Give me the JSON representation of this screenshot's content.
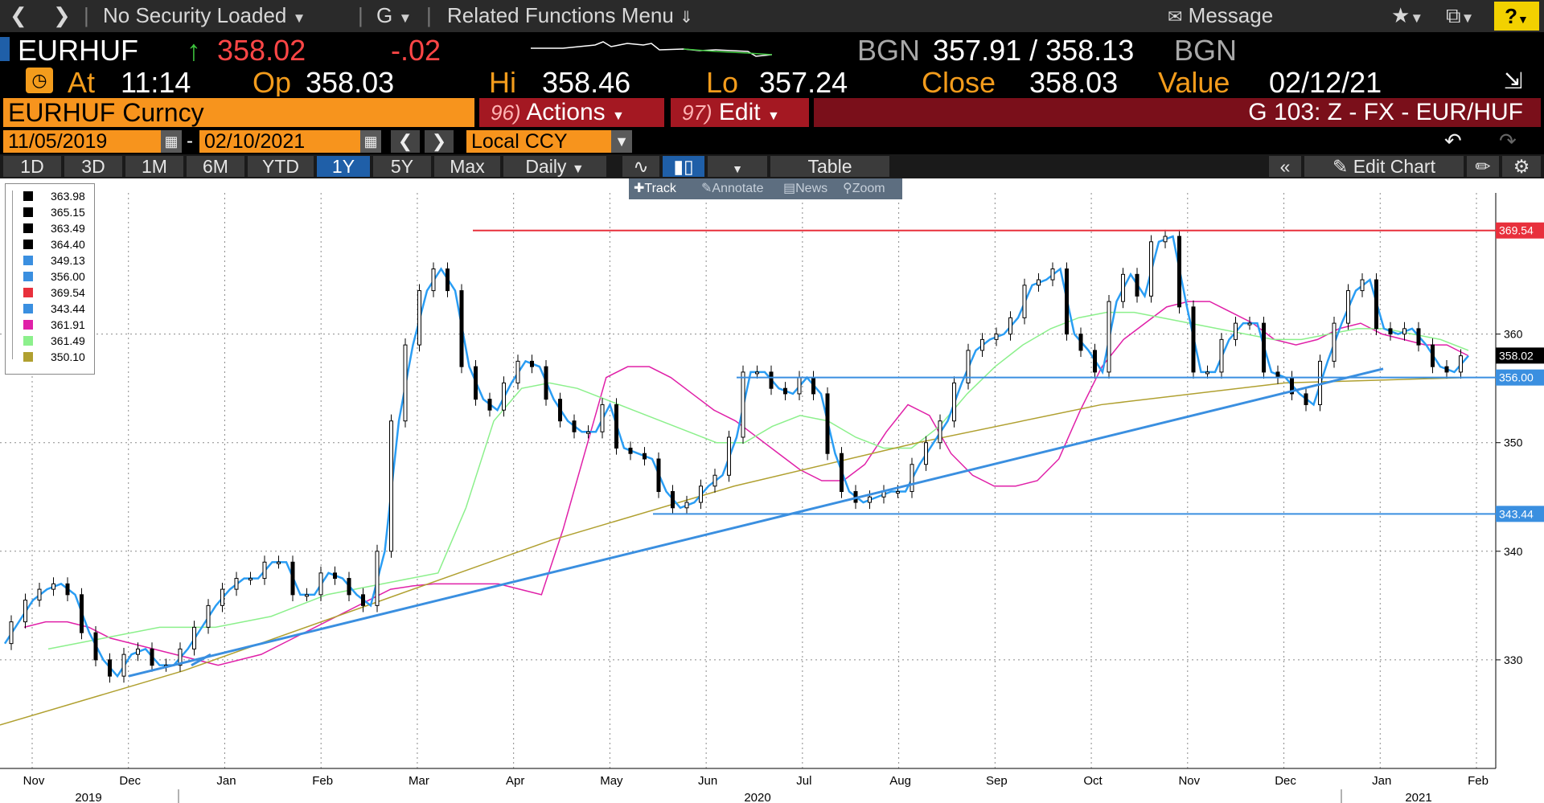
{
  "top": {
    "security": "No Security Loaded",
    "g_menu": "G",
    "related": "Related Functions Menu",
    "message": "Message",
    "help": "?"
  },
  "quote": {
    "ticker": "EURHUF",
    "last": "358.02",
    "change": "-.02",
    "bid_source": "BGN",
    "bid_ask": "357.91 / 358.13",
    "ask_source": "BGN",
    "at_label": "At",
    "at_time": "11:14",
    "open_label": "Op",
    "open": "358.03",
    "hi_label": "Hi",
    "hi": "358.46",
    "lo_label": "Lo",
    "lo": "357.24",
    "close_label": "Close",
    "close": "358.03",
    "value_label": "Value",
    "value_date": "02/12/21"
  },
  "security_bar": {
    "security": "EURHUF Curncy",
    "actions_num": "96)",
    "actions": "Actions",
    "edit_num": "97)",
    "edit": "Edit",
    "title": "G 103: Z - FX - EUR/HUF"
  },
  "date_range": {
    "start": "11/05/2019",
    "dash": "-",
    "end": "02/10/2021",
    "currency": "Local CCY"
  },
  "periods": [
    "1D",
    "3D",
    "1M",
    "6M",
    "YTD",
    "1Y",
    "5Y",
    "Max"
  ],
  "active_period": "1Y",
  "frequency": "Daily",
  "table_label": "Table",
  "edit_chart": "Edit Chart",
  "tools": [
    "Track",
    "Annotate",
    "News",
    "Zoom"
  ],
  "legend": [
    {
      "value": "363.98",
      "color": "#000000"
    },
    {
      "value": "365.15",
      "color": "#000000"
    },
    {
      "value": "363.49",
      "color": "#000000"
    },
    {
      "value": "364.40",
      "color": "#000000"
    },
    {
      "value": "349.13",
      "color": "#3a8fe0"
    },
    {
      "value": "356.00",
      "color": "#3a8fe0"
    },
    {
      "value": "369.54",
      "color": "#e8303c"
    },
    {
      "value": "343.44",
      "color": "#3a8fe0"
    },
    {
      "value": "361.91",
      "color": "#e020a8"
    },
    {
      "value": "361.49",
      "color": "#8cf08c"
    },
    {
      "value": "350.10",
      "color": "#b0a030"
    }
  ],
  "chart_data": {
    "type": "line",
    "title": "",
    "xlabel": "",
    "ylabel": "",
    "x_tick_labels": [
      "Nov",
      "Dec",
      "Jan",
      "Feb",
      "Mar",
      "Apr",
      "May",
      "Jun",
      "Jul",
      "Aug",
      "Sep",
      "Oct",
      "Nov",
      "Dec",
      "Jan",
      "Feb"
    ],
    "year_labels": [
      "2019",
      "2020",
      "2021"
    ],
    "y_ticks": [
      330,
      340,
      350,
      360
    ],
    "ylim": [
      320,
      373
    ],
    "price_labels": [
      {
        "value": "369.54",
        "color": "#e8303c"
      },
      {
        "value": "358.02",
        "color": "#000000"
      },
      {
        "value": "356.00",
        "color": "#3a8fe0"
      },
      {
        "value": "343.44",
        "color": "#3a8fe0"
      }
    ],
    "horizontal_lines": [
      {
        "value": 369.54,
        "color": "#e8303c"
      },
      {
        "value": 356.0,
        "color": "#3a8fe0"
      },
      {
        "value": 343.44,
        "color": "#3a8fe0"
      }
    ],
    "series": [
      {
        "name": "price",
        "color": "#2a9df4",
        "values": [
          331.5,
          333.5,
          335.5,
          336.5,
          337.0,
          336.0,
          332.5,
          330.0,
          328.5,
          330.5,
          331.0,
          329.5,
          329.5,
          331.0,
          333.0,
          335.0,
          336.5,
          337.5,
          337.5,
          339.0,
          339.0,
          336.0,
          336.0,
          338.0,
          337.5,
          336.0,
          335.0,
          340.0,
          352.0,
          359.0,
          364.0,
          366.0,
          364.0,
          357.0,
          354.0,
          353.0,
          355.5,
          357.5,
          357.0,
          354.0,
          352.0,
          351.0,
          351.0,
          353.5,
          349.5,
          349.0,
          348.5,
          345.5,
          344.0,
          344.5,
          346.0,
          347.0,
          350.5,
          356.5,
          356.5,
          355.0,
          354.5,
          356.0,
          354.5,
          349.0,
          345.5,
          344.5,
          345.0,
          345.5,
          345.5,
          348.0,
          350.0,
          352.0,
          355.5,
          358.5,
          359.5,
          360.0,
          361.5,
          364.5,
          365.0,
          366.0,
          360.0,
          358.5,
          356.5,
          363.0,
          365.5,
          363.5,
          368.5,
          369.0,
          362.5,
          356.5,
          356.5,
          359.5,
          361.0,
          361.0,
          356.5,
          356.0,
          354.5,
          353.5,
          357.5,
          361.0,
          364.0,
          365.0,
          360.5,
          360.0,
          360.5,
          359.0,
          357.0,
          356.5,
          358.0
        ]
      },
      {
        "name": "ma_short",
        "color": "#e020a8",
        "values": [
          333.0,
          333.5,
          333.5,
          333.0,
          332.0,
          331.5,
          331.0,
          330.5,
          330.0,
          329.5,
          330.0,
          330.5,
          331.5,
          332.5,
          333.5,
          334.5,
          335.5,
          336.5,
          336.8,
          337.0,
          337.0,
          337.0,
          337.0,
          336.5,
          336.0,
          342.0,
          349.0,
          356.0,
          357.0,
          357.0,
          356.0,
          354.5,
          353.0,
          352.0,
          350.5,
          349.0,
          347.5,
          346.5,
          346.5,
          348.0,
          351.0,
          353.5,
          352.5,
          349.0,
          347.0,
          346.0,
          346.0,
          346.5,
          348.5,
          353.0,
          357.0,
          359.5,
          361.0,
          362.5,
          363.0,
          363.0,
          362.0,
          361.0,
          359.5,
          359.0,
          359.5,
          360.5,
          361.0,
          360.0,
          359.5,
          359.0,
          359.0,
          358.0
        ]
      },
      {
        "name": "ma_mid",
        "color": "#8cf08c",
        "values": [
          331.0,
          331.5,
          332.0,
          332.5,
          333.0,
          333.0,
          333.0,
          333.5,
          334.0,
          335.0,
          336.0,
          336.5,
          337.0,
          337.5,
          338.0,
          344.0,
          352.0,
          355.0,
          355.5,
          355.0,
          354.0,
          353.0,
          352.0,
          351.0,
          350.0,
          350.0,
          351.5,
          352.5,
          352.0,
          350.5,
          349.5,
          349.5,
          351.5,
          354.5,
          357.0,
          359.0,
          360.5,
          361.5,
          362.0,
          362.0,
          361.5,
          361.0,
          360.5,
          360.0,
          359.5,
          359.5,
          360.0,
          360.5,
          360.5,
          360.0,
          359.5,
          358.5
        ]
      },
      {
        "name": "ma_long",
        "color": "#b0a030",
        "values": [
          324.0,
          329.0,
          335.0,
          341.0,
          346.0,
          350.0,
          353.5,
          355.5,
          356.0
        ]
      }
    ],
    "trendlines": [
      {
        "from": [
          "Dec",
          328.5
        ],
        "to": [
          "Jan",
          356.8
        ],
        "color": "#3a8fe0"
      }
    ]
  }
}
